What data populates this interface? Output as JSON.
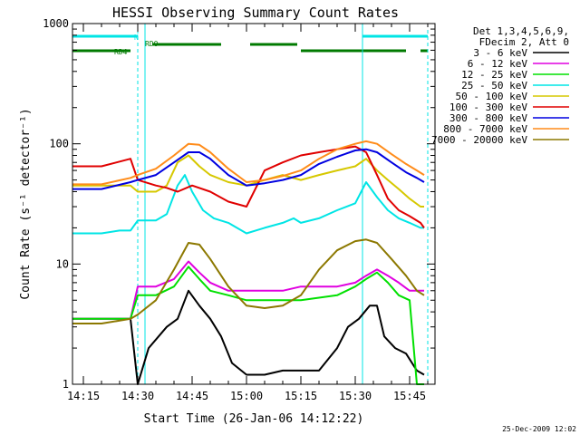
{
  "chart_data": {
    "type": "line",
    "title": "HESSI Observing Summary Count Rates",
    "xlabel": "Start Time (26-Jan-06 14:12:22)",
    "ylabel": "Count Rate (s⁻¹ detector⁻¹)",
    "xlim": [
      "14:12",
      "15:52"
    ],
    "ylim": [
      1,
      1000
    ],
    "yscale": "log",
    "x_ticks": [
      "14:15",
      "14:30",
      "14:45",
      "15:00",
      "15:15",
      "15:30",
      "15:45"
    ],
    "y_ticks": [
      "1",
      "10",
      "100",
      "1000"
    ],
    "legend_title": [
      "Det 1,3,4,5,6,9,",
      "FDecim 2, Att 0"
    ],
    "legend_position": "right",
    "footer_date": "25-Dec-2009 12:02",
    "flags": [
      {
        "label": "N",
        "color": "#00e5e5",
        "segments": [
          [
            "14:12",
            "14:30"
          ],
          [
            "15:32",
            "15:50"
          ]
        ]
      },
      {
        "label": "RD0",
        "color": "#007a00",
        "segments": [
          [
            "14:34",
            "14:53"
          ],
          [
            "15:01",
            "15:14"
          ]
        ]
      },
      {
        "label": "RD4",
        "color": "#007a00",
        "segments": [
          [
            "14:12",
            "14:28"
          ],
          [
            "15:15",
            "15:44"
          ],
          [
            "15:48",
            "15:50"
          ]
        ]
      }
    ],
    "series": [
      {
        "name": "3 - 6 keV",
        "color": "#000000",
        "x": [
          "14:12",
          "14:28",
          "14:30",
          "14:33",
          "14:38",
          "14:41",
          "14:44",
          "14:47",
          "14:50",
          "14:53",
          "14:56",
          "15:00",
          "15:05",
          "15:10",
          "15:15",
          "15:20",
          "15:25",
          "15:28",
          "15:31",
          "15:34",
          "15:36",
          "15:38",
          "15:41",
          "15:44",
          "15:47",
          "15:49"
        ],
        "values": [
          3.5,
          3.5,
          1.0,
          2.0,
          3.0,
          3.5,
          6.0,
          4.5,
          3.5,
          2.5,
          1.5,
          1.2,
          1.2,
          1.3,
          1.3,
          1.3,
          2.0,
          3.0,
          3.5,
          4.5,
          4.5,
          2.5,
          2.0,
          1.8,
          1.3,
          1.2
        ]
      },
      {
        "name": "6 - 12 keV",
        "color": "#e000e0",
        "x": [
          "14:12",
          "14:28",
          "14:30",
          "14:35",
          "14:40",
          "14:44",
          "14:47",
          "14:50",
          "14:55",
          "15:00",
          "15:05",
          "15:10",
          "15:15",
          "15:25",
          "15:30",
          "15:33",
          "15:36",
          "15:39",
          "15:42",
          "15:45",
          "15:49"
        ],
        "values": [
          3.5,
          3.5,
          6.5,
          6.5,
          7.5,
          10.5,
          8.5,
          7.0,
          6.0,
          6.0,
          6.0,
          6.0,
          6.5,
          6.5,
          7.0,
          8.0,
          9.0,
          8.0,
          7.0,
          6.0,
          6.0
        ]
      },
      {
        "name": "12 - 25 keV",
        "color": "#00e000",
        "x": [
          "14:12",
          "14:28",
          "14:30",
          "14:35",
          "14:40",
          "14:44",
          "14:47",
          "14:50",
          "14:55",
          "15:00",
          "15:05",
          "15:10",
          "15:15",
          "15:25",
          "15:30",
          "15:33",
          "15:36",
          "15:39",
          "15:42",
          "15:45",
          "15:47",
          "15:49"
        ],
        "values": [
          3.5,
          3.5,
          5.5,
          5.5,
          6.5,
          9.5,
          7.5,
          6.0,
          5.5,
          5.0,
          5.0,
          5.0,
          5.0,
          5.5,
          6.5,
          7.5,
          8.5,
          7.0,
          5.5,
          5.0,
          1.0,
          1.0
        ]
      },
      {
        "name": "25 - 50 keV",
        "color": "#00e5e5",
        "x": [
          "14:12",
          "14:20",
          "14:25",
          "14:28",
          "14:30",
          "14:35",
          "14:38",
          "14:41",
          "14:43",
          "14:45",
          "14:48",
          "14:51",
          "14:55",
          "15:00",
          "15:05",
          "15:10",
          "15:13",
          "15:15",
          "15:20",
          "15:25",
          "15:30",
          "15:33",
          "15:36",
          "15:39",
          "15:42",
          "15:45",
          "15:48",
          "15:49"
        ],
        "values": [
          18,
          18,
          19,
          19,
          23,
          23,
          26,
          45,
          55,
          40,
          28,
          24,
          22,
          18,
          20,
          22,
          24,
          22,
          24,
          28,
          32,
          48,
          36,
          28,
          24,
          22,
          20,
          20
        ]
      },
      {
        "name": "50 - 100 keV",
        "color": "#d6c800",
        "x": [
          "14:12",
          "14:20",
          "14:28",
          "14:30",
          "14:35",
          "14:38",
          "14:41",
          "14:44",
          "14:47",
          "14:50",
          "14:55",
          "15:00",
          "15:05",
          "15:10",
          "15:15",
          "15:20",
          "15:25",
          "15:30",
          "15:33",
          "15:36",
          "15:39",
          "15:42",
          "15:45",
          "15:48",
          "15:49"
        ],
        "values": [
          45,
          45,
          45,
          40,
          40,
          45,
          70,
          80,
          65,
          55,
          48,
          45,
          50,
          55,
          50,
          55,
          60,
          65,
          75,
          60,
          50,
          42,
          35,
          30,
          30
        ]
      },
      {
        "name": "100 - 300 keV",
        "color": "#e00000",
        "x": [
          "14:12",
          "14:20",
          "14:28",
          "14:30",
          "14:35",
          "14:38",
          "14:41",
          "14:45",
          "14:50",
          "14:55",
          "15:00",
          "15:05",
          "15:10",
          "15:15",
          "15:20",
          "15:25",
          "15:30",
          "15:33",
          "15:36",
          "15:39",
          "15:42",
          "15:45",
          "15:48",
          "15:49"
        ],
        "values": [
          65,
          65,
          75,
          50,
          45,
          43,
          40,
          45,
          40,
          33,
          30,
          60,
          70,
          80,
          85,
          90,
          95,
          85,
          55,
          35,
          28,
          25,
          22,
          20
        ]
      },
      {
        "name": "300 - 800 keV",
        "color": "#0000e0",
        "x": [
          "14:12",
          "14:20",
          "14:28",
          "14:30",
          "14:35",
          "14:40",
          "14:44",
          "14:47",
          "14:50",
          "14:55",
          "15:00",
          "15:05",
          "15:10",
          "15:15",
          "15:20",
          "15:25",
          "15:30",
          "15:33",
          "15:36",
          "15:40",
          "15:44",
          "15:47",
          "15:49"
        ],
        "values": [
          42,
          42,
          48,
          50,
          55,
          70,
          85,
          85,
          75,
          55,
          45,
          47,
          50,
          55,
          68,
          78,
          88,
          90,
          85,
          70,
          58,
          52,
          48
        ]
      },
      {
        "name": "800 - 7000 keV",
        "color": "#ff8c1a",
        "x": [
          "14:12",
          "14:20",
          "14:28",
          "14:30",
          "14:35",
          "14:40",
          "14:44",
          "14:47",
          "14:50",
          "14:55",
          "15:00",
          "15:05",
          "15:10",
          "15:15",
          "15:20",
          "15:25",
          "15:30",
          "15:33",
          "15:36",
          "15:40",
          "15:44",
          "15:47",
          "15:49"
        ],
        "values": [
          46,
          46,
          52,
          55,
          62,
          80,
          100,
          98,
          85,
          62,
          48,
          50,
          54,
          60,
          75,
          90,
          100,
          105,
          100,
          82,
          68,
          60,
          55
        ]
      },
      {
        "name": "7000 - 20000 keV",
        "color": "#8c7800",
        "x": [
          "14:12",
          "14:20",
          "14:28",
          "14:30",
          "14:35",
          "14:40",
          "14:44",
          "14:47",
          "14:50",
          "14:55",
          "15:00",
          "15:05",
          "15:10",
          "15:15",
          "15:20",
          "15:25",
          "15:30",
          "15:33",
          "15:36",
          "15:40",
          "15:44",
          "15:47",
          "15:49"
        ],
        "values": [
          3.2,
          3.2,
          3.5,
          3.8,
          5.0,
          9.0,
          15.0,
          14.5,
          11.0,
          6.5,
          4.5,
          4.3,
          4.5,
          5.5,
          9.0,
          13.0,
          15.5,
          16.0,
          15.0,
          11.0,
          8.0,
          6.0,
          5.5
        ]
      }
    ]
  }
}
